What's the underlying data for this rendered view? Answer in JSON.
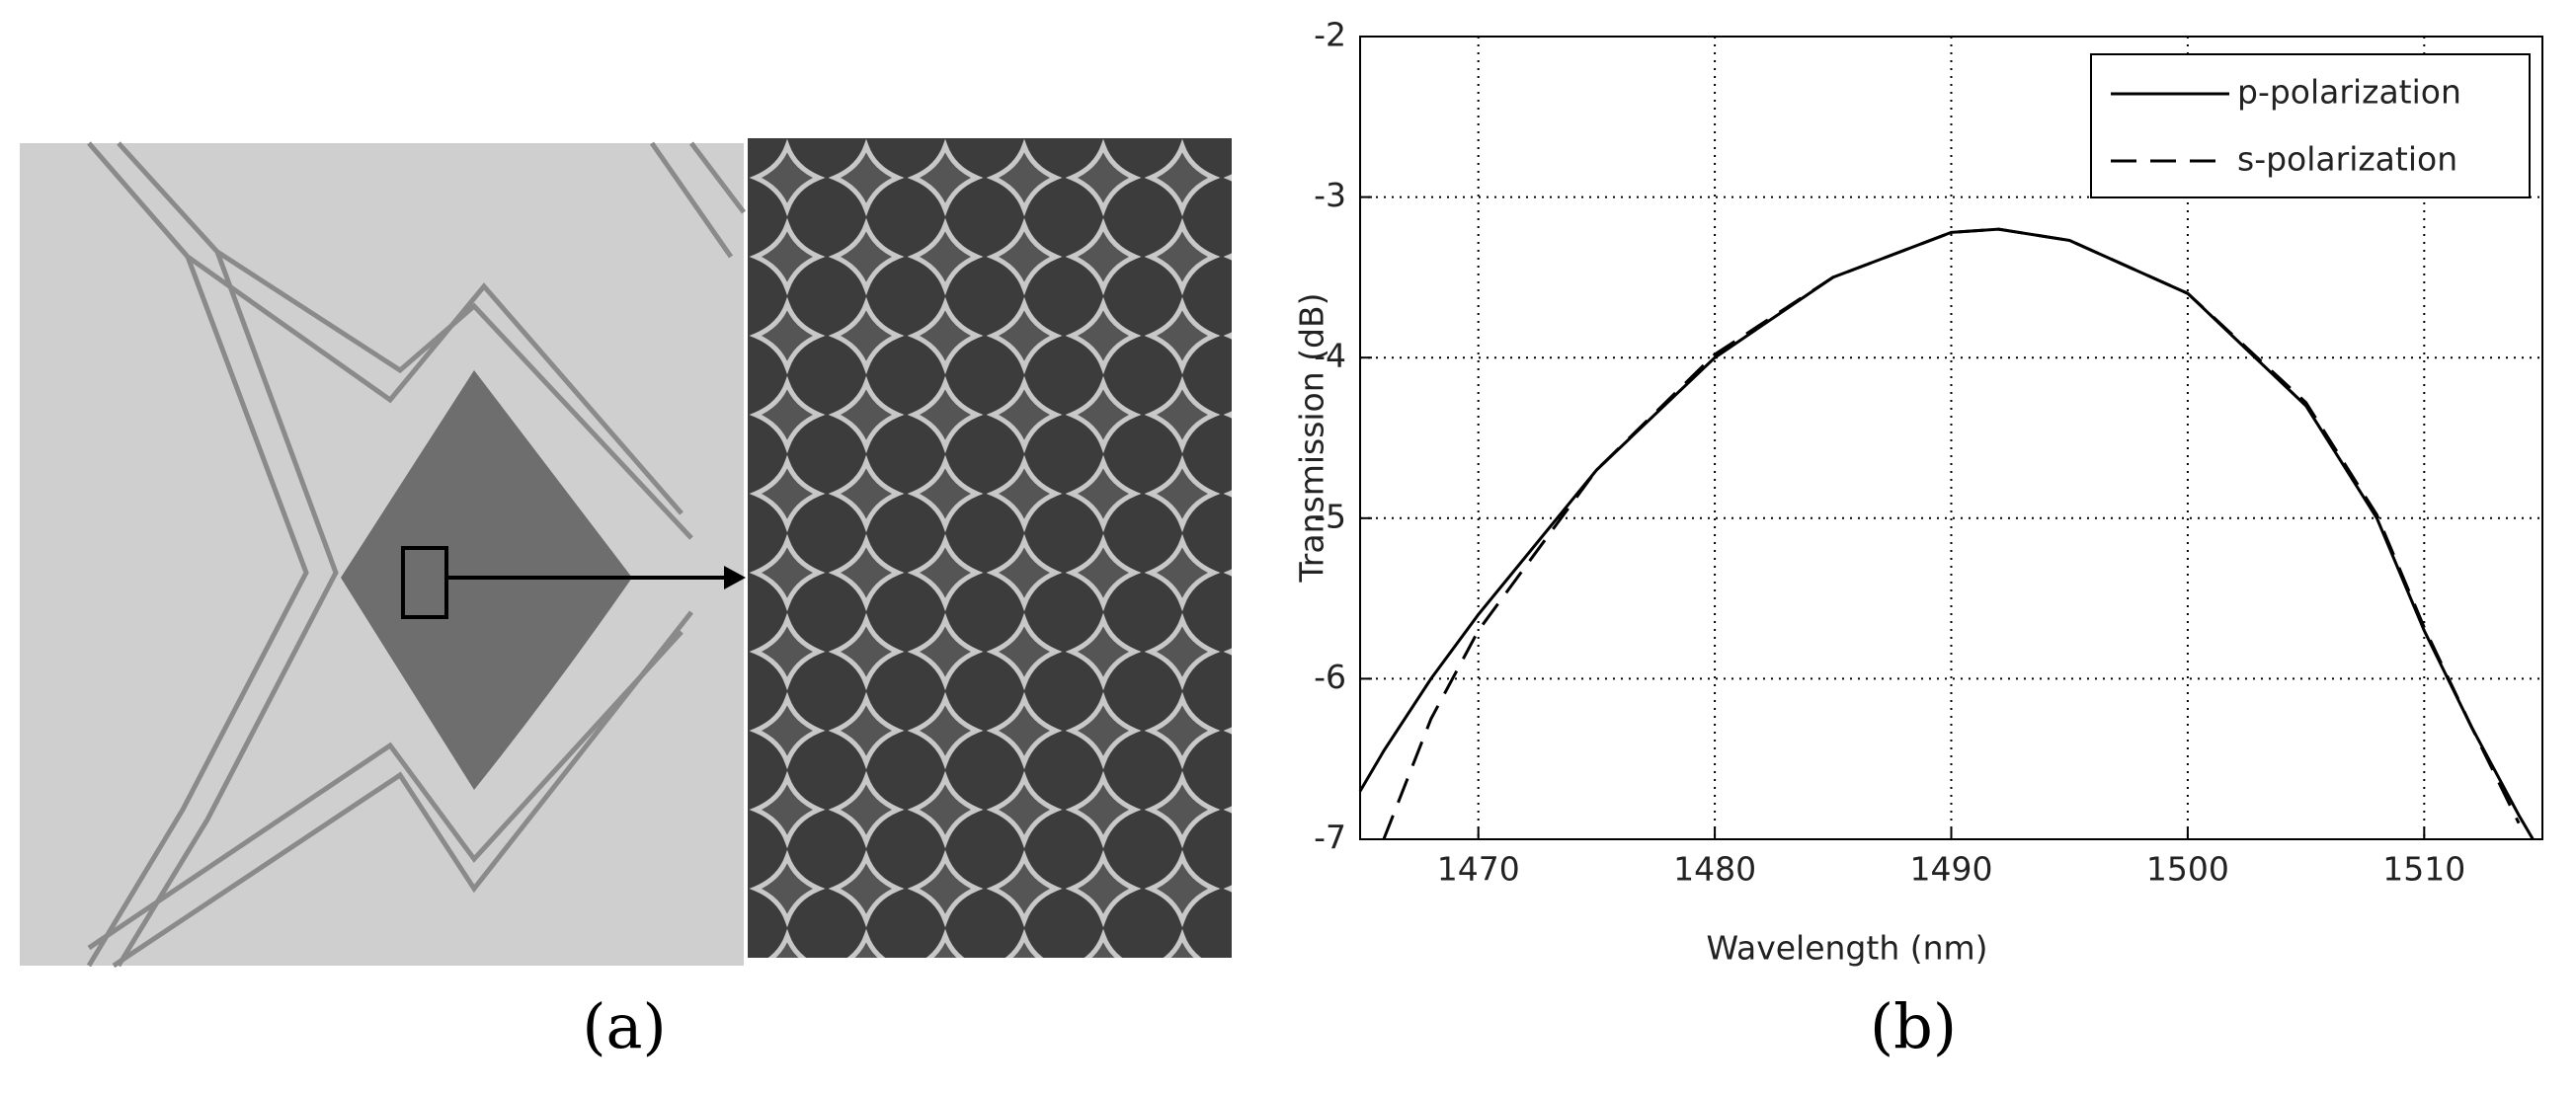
{
  "chart_data": {
    "type": "line",
    "xlabel": "Wavelength (nm)",
    "ylabel": "Transmission (dB)",
    "x": [
      1465,
      1466,
      1468,
      1470,
      1475,
      1480,
      1485,
      1490,
      1492,
      1495,
      1500,
      1505,
      1508,
      1510,
      1512,
      1514,
      1514.6
    ],
    "series": [
      {
        "name": "p-polarization",
        "color": "#000000",
        "dash": "solid",
        "values": [
          -6.7,
          -6.45,
          -6.0,
          -5.6,
          -4.7,
          -4.0,
          -3.5,
          -3.22,
          -3.2,
          -3.27,
          -3.6,
          -4.3,
          -5.0,
          -5.7,
          -6.3,
          -6.85,
          -7.0
        ]
      },
      {
        "name": "s-polarization",
        "color": "#000000",
        "dash": "dashed",
        "values": [
          null,
          -7.0,
          -6.25,
          -5.7,
          -4.7,
          -3.98,
          -3.5,
          -3.22,
          -3.2,
          -3.27,
          -3.6,
          -4.28,
          -4.98,
          -5.68,
          -6.3,
          -6.9,
          null
        ]
      }
    ],
    "xlim": [
      1465,
      1515
    ],
    "xticks": [
      1470,
      1480,
      1490,
      1500,
      1510
    ],
    "ylim": [
      -7,
      -2
    ],
    "yticks": [
      -7,
      -6,
      -5,
      -4,
      -3,
      -2
    ],
    "grid": true,
    "legend": "upper right"
  },
  "panels": {
    "a": "(a)",
    "b": "(b)"
  }
}
